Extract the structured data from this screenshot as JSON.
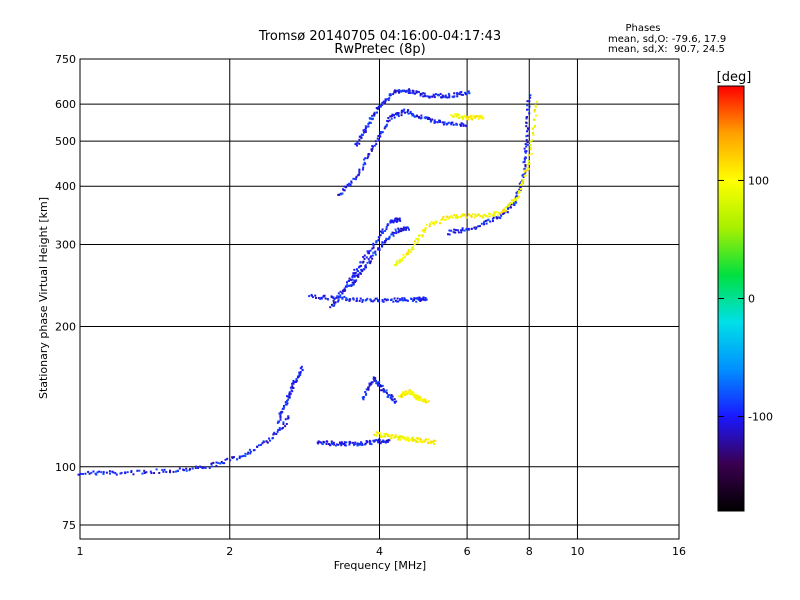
{
  "chart_data": {
    "type": "scatter",
    "title": "Tromsø 20140705 04:16:00-04:17:43",
    "subtitle": "RwPretec (8p)",
    "xlabel": "Frequency [MHz]",
    "ylabel": "Stationary phase Virtual Height [km]",
    "xscale": "log",
    "yscale": "log",
    "xlim": [
      1,
      16
    ],
    "ylim": [
      70,
      750
    ],
    "xticks": [
      "1",
      "2",
      "4",
      "6",
      "8",
      "10",
      "16"
    ],
    "xtick_values": [
      1,
      2,
      4,
      6,
      8,
      10,
      16
    ],
    "yticks": [
      "75",
      "100",
      "200",
      "300",
      "400",
      "500",
      "600",
      "750"
    ],
    "ytick_values": [
      75,
      100,
      200,
      300,
      400,
      500,
      600,
      750
    ],
    "grid": true,
    "phase_stats": {
      "header": "Phases",
      "line_o": "mean, sd,O: -79.6, 17.9",
      "line_x": "mean, sd,X:  90.7, 24.5"
    },
    "colorbar": {
      "label": "[deg]",
      "range": [
        -180,
        180
      ],
      "ticks": [
        "100",
        "0",
        "-100"
      ],
      "tick_values": [
        100,
        0,
        -100
      ],
      "colors": [
        "#000000",
        "#3a0050",
        "#1a18ff",
        "#0090ff",
        "#00e0e8",
        "#00e040",
        "#a8f000",
        "#ffff00",
        "#ffa000",
        "#ff0000"
      ]
    },
    "series": [
      {
        "phase": -100,
        "segments": [
          {
            "x": [
              1.0,
              1.2,
              1.5,
              1.8,
              2.1,
              2.4,
              2.65
            ],
            "y": [
              97,
              97,
              98,
              100,
              105,
              114,
              128
            ]
          },
          {
            "x": [
              2.5,
              2.6,
              2.7,
              2.8
            ],
            "y": [
              125,
              138,
              152,
              163
            ]
          },
          {
            "x": [
              3.0,
              3.3,
              3.6,
              3.9,
              4.2
            ],
            "y": [
              113,
              112,
              112,
              113,
              114
            ]
          },
          {
            "x": [
              3.2,
              3.4,
              3.6,
              3.9,
              4.2,
              4.4
            ],
            "y": [
              220,
              240,
              265,
              300,
              335,
              340
            ]
          },
          {
            "x": [
              3.5,
              3.7,
              4.0,
              4.3,
              4.6
            ],
            "y": [
              245,
              265,
              295,
              320,
              325
            ]
          },
          {
            "x": [
              2.9,
              3.3,
              3.7,
              4.2,
              4.7,
              5.0
            ],
            "y": [
              232,
              230,
              228,
              228,
              228,
              230
            ]
          },
          {
            "x": [
              3.3,
              3.6,
              3.9,
              4.2,
              4.5,
              4.9,
              5.4,
              6.0
            ],
            "y": [
              380,
              420,
              490,
              560,
              580,
              560,
              545,
              540
            ]
          },
          {
            "x": [
              3.6,
              3.8,
              4.0,
              4.3,
              4.6,
              5.0,
              5.5,
              6.1
            ],
            "y": [
              490,
              545,
              595,
              640,
              640,
              625,
              625,
              635
            ]
          },
          {
            "x": [
              5.5,
              6.2,
              7.0,
              7.5,
              7.8,
              7.9,
              8.0
            ],
            "y": [
              318,
              325,
              345,
              370,
              420,
              500,
              630
            ]
          },
          {
            "x": [
              3.7,
              3.9,
              4.1,
              4.3
            ],
            "y": [
              140,
              155,
              145,
              138
            ]
          }
        ]
      },
      {
        "phase": 100,
        "segments": [
          {
            "x": [
              4.3,
              4.6,
              5.0,
              5.6,
              6.3,
              7.0,
              7.6,
              8.0,
              8.3
            ],
            "y": [
              270,
              290,
              330,
              345,
              345,
              350,
              380,
              450,
              620
            ]
          },
          {
            "x": [
              5.6,
              6.0,
              6.5
            ],
            "y": [
              570,
              560,
              565
            ]
          },
          {
            "x": [
              3.9,
              4.2,
              4.5,
              4.8,
              5.2
            ],
            "y": [
              118,
              116,
              115,
              114,
              113
            ]
          },
          {
            "x": [
              4.4,
              4.6,
              4.8,
              5.0
            ],
            "y": [
              142,
              145,
              140,
              138
            ]
          }
        ]
      }
    ]
  }
}
